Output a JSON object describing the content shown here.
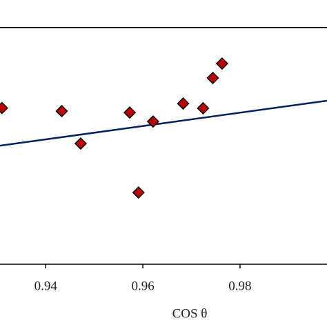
{
  "chart_data": {
    "type": "scatter",
    "x_label": "COS θ",
    "xlim": [
      0.9306,
      0.9979
    ],
    "xticks": [
      0.94,
      0.96,
      0.98
    ],
    "ylim": [
      0,
      10
    ],
    "series": [
      {
        "color": "#c00000",
        "x": [
          0.931,
          0.9433,
          0.9472,
          0.9573,
          0.9591,
          0.9621,
          0.9683,
          0.9724,
          0.9744,
          0.9763
        ],
        "values": [
          6.6,
          6.47,
          5.1,
          6.41,
          3.03,
          6.03,
          6.79,
          6.59,
          7.87,
          8.48
        ]
      }
    ],
    "trendline": {
      "color": "#002060",
      "x": [
        0.9306,
        0.9979
      ],
      "values": [
        5.01,
        6.91
      ]
    }
  }
}
